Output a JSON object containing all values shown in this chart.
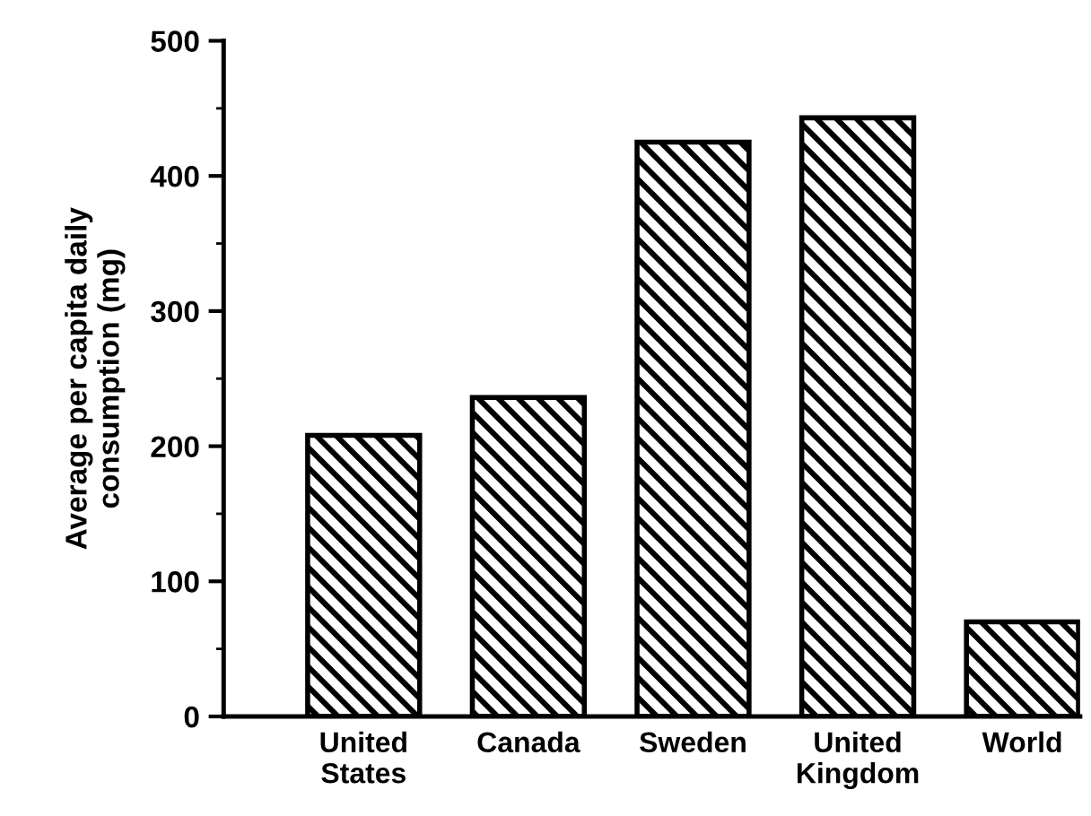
{
  "chart_data": {
    "type": "bar",
    "ylabel": "Average per capita daily\nconsumption (mg)",
    "categories": [
      "United\nStates",
      "Canada",
      "Sweden",
      "United\nKingdom",
      "World"
    ],
    "values": [
      208,
      236,
      425,
      443,
      70
    ],
    "color": "#000000",
    "ylim": [
      0,
      500
    ],
    "yticks": [
      0,
      100,
      200,
      300,
      400,
      500
    ],
    "grid": false
  }
}
